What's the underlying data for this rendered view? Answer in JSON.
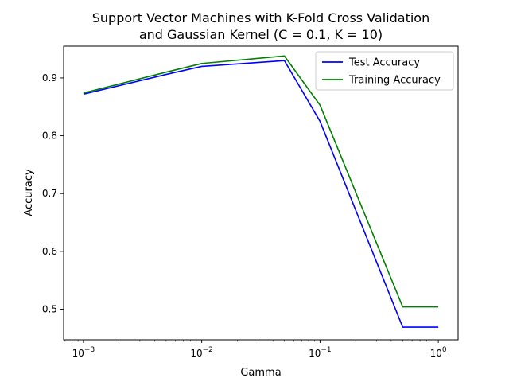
{
  "chart_data": {
    "type": "line",
    "title_line1": "Support Vector Machines with K-Fold Cross Validation",
    "title_line2": "and Gaussian Kernel (C = 0.1, K = 10)",
    "xlabel": "Gamma",
    "ylabel": "Accuracy",
    "xscale": "log",
    "xlim": [
      0.00068,
      1.47
    ],
    "ylim": [
      0.447,
      0.955
    ],
    "x": [
      0.001,
      0.005,
      0.01,
      0.05,
      0.1,
      0.5,
      1.0
    ],
    "x_ticks": [
      {
        "value": 0.001,
        "base": "10",
        "exp": "−3"
      },
      {
        "value": 0.01,
        "base": "10",
        "exp": "−2"
      },
      {
        "value": 0.1,
        "base": "10",
        "exp": "−1"
      },
      {
        "value": 1.0,
        "base": "10",
        "exp": "0"
      }
    ],
    "y_ticks": [
      {
        "value": 0.5,
        "label": "0.5"
      },
      {
        "value": 0.6,
        "label": "0.6"
      },
      {
        "value": 0.7,
        "label": "0.7"
      },
      {
        "value": 0.8,
        "label": "0.8"
      },
      {
        "value": 0.9,
        "label": "0.9"
      }
    ],
    "series": [
      {
        "name": "Test Accuracy",
        "color": "#0000ff",
        "values": [
          0.872,
          0.906,
          0.92,
          0.93,
          0.825,
          0.469,
          0.469
        ]
      },
      {
        "name": "Training Accuracy",
        "color": "#008000",
        "values": [
          0.874,
          0.91,
          0.925,
          0.938,
          0.853,
          0.504,
          0.504
        ]
      }
    ],
    "grid": false,
    "legend_position": "top-right"
  }
}
